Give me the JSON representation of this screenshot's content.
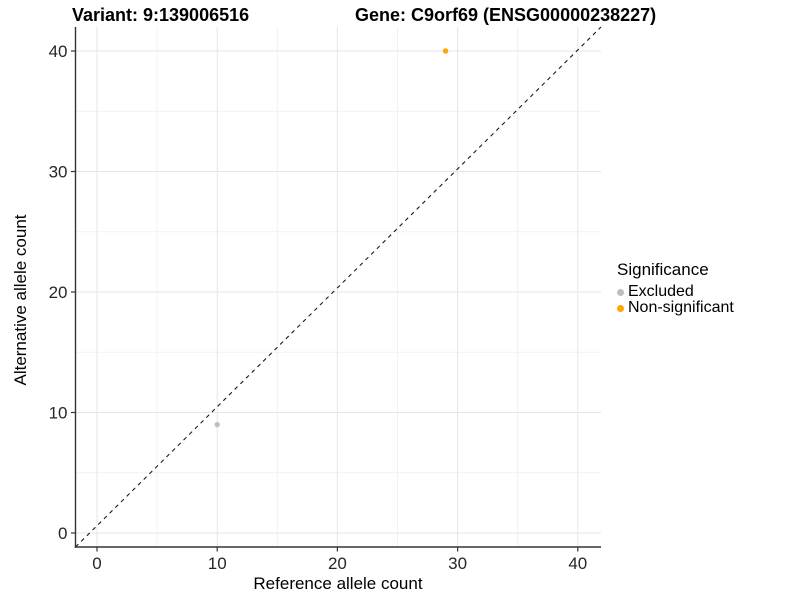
{
  "titles": {
    "variant": "Variant: 9:139006516",
    "gene": "Gene: C9orf69 (ENSG00000238227)"
  },
  "chart_data": {
    "type": "scatter",
    "xlabel": "Reference allele count",
    "ylabel": "Alternative allele count",
    "xlim": [
      -2,
      42
    ],
    "ylim": [
      -2,
      42
    ],
    "xticks": [
      0,
      10,
      20,
      30,
      40
    ],
    "yticks": [
      0,
      10,
      20,
      30,
      40
    ],
    "x_minor_ticks": [
      5,
      15,
      25,
      35
    ],
    "y_minor_ticks": [
      5,
      15,
      25,
      35
    ],
    "grid": "on",
    "reference_line": {
      "type": "identity",
      "style": "dashed",
      "color": "#1a1a1a"
    },
    "series": [
      {
        "name": "Excluded",
        "color": "#BEBEBE",
        "points": [
          {
            "x": 10,
            "y": 9
          }
        ]
      },
      {
        "name": "Non-significant",
        "color": "#FFA500",
        "points": [
          {
            "x": 29,
            "y": 40
          }
        ]
      }
    ],
    "legend": {
      "title": "Significance",
      "position": "right",
      "entries": [
        {
          "label": "Excluded",
          "color": "#BEBEBE"
        },
        {
          "label": "Non-significant",
          "color": "#FFA500"
        }
      ]
    }
  },
  "colors": {
    "background": "#ffffff",
    "grid_major": "#e6e6e6",
    "grid_minor": "#f2f2f2",
    "axis_line": "#333333",
    "tick_text": "#262626",
    "point_excluded": "#BEBEBE",
    "point_non_significant": "#FFA500"
  }
}
